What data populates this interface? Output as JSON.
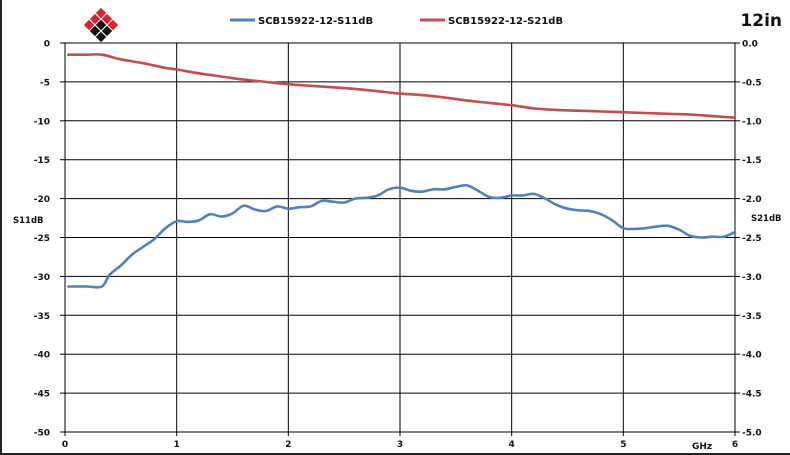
{
  "chart_data": {
    "type": "line",
    "badge": "12in",
    "x_unit_label": "GHz",
    "x_ticks": [
      "0",
      "1",
      "2",
      "3",
      "4",
      "5",
      "6"
    ],
    "xlim": [
      0,
      6
    ],
    "y_left": {
      "label": "S11dB",
      "ylim": [
        -50,
        0
      ],
      "ticks": [
        0,
        -5,
        -10,
        -15,
        -20,
        -25,
        -30,
        -35,
        -40,
        -45,
        -50
      ],
      "tick_labels": [
        "0",
        "-5",
        "-10",
        "-15",
        "-20",
        "-25",
        "-30",
        "-35",
        "-40",
        "-45",
        "-50"
      ]
    },
    "y_right": {
      "label": "S21dB",
      "ylim": [
        -5,
        0
      ],
      "ticks": [
        0,
        -0.5,
        -1,
        -1.5,
        -2,
        -2.5,
        -3,
        -3.5,
        -4,
        -4.5,
        -5
      ],
      "tick_labels": [
        "0.0",
        "-0.5",
        "-1.0",
        "-1.5",
        "-2.0",
        "-2.5",
        "-3.0",
        "-3.5",
        "-4.0",
        "-4.5",
        "-5.0"
      ]
    },
    "grid": true,
    "legend_position": "top",
    "series": [
      {
        "name": "SCB15922-12-S11dB",
        "axis": "left",
        "color": "#4f81bd",
        "x": [
          0.03,
          0.1,
          0.2,
          0.33,
          0.4,
          0.5,
          0.6,
          0.7,
          0.8,
          0.9,
          1.0,
          1.1,
          1.2,
          1.3,
          1.4,
          1.5,
          1.6,
          1.7,
          1.8,
          1.9,
          2.0,
          2.1,
          2.2,
          2.3,
          2.4,
          2.5,
          2.6,
          2.7,
          2.8,
          2.9,
          3.0,
          3.1,
          3.2,
          3.3,
          3.4,
          3.5,
          3.6,
          3.7,
          3.8,
          3.9,
          4.0,
          4.1,
          4.2,
          4.3,
          4.4,
          4.5,
          4.6,
          4.7,
          4.8,
          4.9,
          5.0,
          5.1,
          5.2,
          5.3,
          5.4,
          5.5,
          5.6,
          5.7,
          5.8,
          5.9,
          6.0
        ],
        "values": [
          -31.3,
          -31.3,
          -31.3,
          -31.3,
          -29.8,
          -28.6,
          -27.2,
          -26.2,
          -25.2,
          -23.8,
          -22.9,
          -23.0,
          -22.8,
          -22.0,
          -22.3,
          -21.9,
          -20.9,
          -21.4,
          -21.6,
          -21.0,
          -21.3,
          -21.1,
          -21.0,
          -20.3,
          -20.4,
          -20.5,
          -20.0,
          -19.9,
          -19.6,
          -18.8,
          -18.6,
          -19.0,
          -19.1,
          -18.8,
          -18.8,
          -18.5,
          -18.3,
          -19.0,
          -19.8,
          -19.9,
          -19.6,
          -19.6,
          -19.4,
          -20.0,
          -20.8,
          -21.3,
          -21.5,
          -21.6,
          -22.0,
          -22.8,
          -23.8,
          -23.9,
          -23.8,
          -23.6,
          -23.5,
          -24.0,
          -24.8,
          -25.0,
          -24.9,
          -24.9,
          -24.3
        ]
      },
      {
        "name": "SCB15922-12-S21dB",
        "axis": "right",
        "color": "#c0504d",
        "x": [
          0.03,
          0.2,
          0.33,
          0.5,
          0.7,
          0.9,
          1.0,
          1.2,
          1.4,
          1.6,
          1.8,
          2.0,
          2.2,
          2.4,
          2.6,
          2.8,
          3.0,
          3.2,
          3.4,
          3.6,
          3.8,
          4.0,
          4.2,
          4.4,
          4.6,
          4.8,
          5.0,
          5.2,
          5.4,
          5.6,
          5.8,
          6.0
        ],
        "values": [
          -0.15,
          -0.15,
          -0.15,
          -0.21,
          -0.26,
          -0.32,
          -0.34,
          -0.39,
          -0.43,
          -0.47,
          -0.5,
          -0.53,
          -0.55,
          -0.57,
          -0.59,
          -0.62,
          -0.65,
          -0.67,
          -0.7,
          -0.74,
          -0.77,
          -0.8,
          -0.84,
          -0.86,
          -0.87,
          -0.88,
          -0.89,
          -0.9,
          -0.91,
          -0.92,
          -0.94,
          -0.96
        ]
      }
    ]
  },
  "logo": {
    "name": "diamond-logo",
    "colors": [
      "#d9232d",
      "#111111"
    ]
  }
}
